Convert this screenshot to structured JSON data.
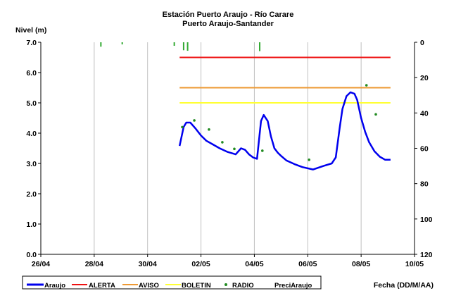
{
  "chart_data": {
    "type": "line",
    "title": "Estación Puerto Araujo - Río Carare",
    "subtitle": "Puerto Araujo-Santander",
    "ylabel": "Nivel (m)",
    "xlabel": "Fecha (DD/M/AA)",
    "x_tick_labels": [
      "26/04",
      "28/04",
      "30/04",
      "02/05",
      "04/05",
      "06/05",
      "08/05",
      "10/05"
    ],
    "x_tick_days": [
      0,
      2,
      4,
      6,
      8,
      10,
      12,
      14
    ],
    "y_tick_labels": [
      "0.0",
      "1.0",
      "2.0",
      "3.0",
      "4.0",
      "5.0",
      "6.0",
      "7.0"
    ],
    "y2_tick_labels": [
      "0",
      "20",
      "40",
      "60",
      "80",
      "100",
      "120"
    ],
    "ylim": [
      0,
      7
    ],
    "y2lim": [
      0,
      120
    ],
    "y2_inverted": true,
    "grid": "vertical",
    "legend_position": "bottom",
    "colors": {
      "araujo": "#0000ee",
      "alerta": "#ee1111",
      "aviso": "#ee9933",
      "boletin": "#ffff33",
      "radio": "#228b22",
      "precip": "#33aa33"
    },
    "series": [
      {
        "name": "Araujo",
        "kind": "line",
        "x": [
          5.2,
          5.35,
          5.45,
          5.6,
          5.8,
          6.0,
          6.2,
          6.4,
          6.7,
          7.0,
          7.3,
          7.5,
          7.65,
          7.8,
          7.95,
          8.1,
          8.25,
          8.35,
          8.5,
          8.62,
          8.75,
          8.88,
          9.0,
          9.2,
          9.5,
          9.8,
          10.2,
          10.6,
          10.9,
          11.05,
          11.2,
          11.3,
          11.45,
          11.6,
          11.75,
          11.85,
          12.0,
          12.15,
          12.3,
          12.5,
          12.7,
          12.9,
          13.1
        ],
        "y": [
          3.58,
          4.2,
          4.35,
          4.35,
          4.15,
          3.92,
          3.75,
          3.65,
          3.5,
          3.38,
          3.3,
          3.5,
          3.45,
          3.3,
          3.2,
          3.15,
          4.4,
          4.6,
          4.4,
          3.9,
          3.5,
          3.35,
          3.25,
          3.1,
          2.98,
          2.88,
          2.8,
          2.92,
          3.0,
          3.2,
          4.2,
          4.8,
          5.22,
          5.35,
          5.3,
          5.1,
          4.5,
          4.05,
          3.7,
          3.4,
          3.22,
          3.12,
          3.12
        ]
      },
      {
        "name": "ALERTA",
        "kind": "threshold",
        "x": [
          5.2,
          13.1
        ],
        "y": [
          6.5,
          6.5
        ]
      },
      {
        "name": "AVISO",
        "kind": "threshold",
        "x": [
          5.2,
          13.1
        ],
        "y": [
          5.5,
          5.5
        ]
      },
      {
        "name": "BOLETIN",
        "kind": "threshold",
        "x": [
          5.2,
          13.1
        ],
        "y": [
          5.0,
          5.0
        ]
      },
      {
        "name": "RADIO",
        "kind": "scatter",
        "x": [
          5.3,
          5.75,
          6.3,
          6.8,
          7.25,
          8.3,
          10.05,
          12.2,
          12.55
        ],
        "y": [
          4.2,
          4.42,
          4.12,
          3.7,
          3.48,
          3.42,
          3.12,
          5.58,
          4.62
        ]
      },
      {
        "name": "PreciAraujo",
        "kind": "bars_y2",
        "x": [
          2.25,
          3.05,
          5.0,
          5.35,
          5.5,
          8.2
        ],
        "y2": [
          2.5,
          1.2,
          2.0,
          4.5,
          4.8,
          5.0
        ]
      }
    ]
  }
}
